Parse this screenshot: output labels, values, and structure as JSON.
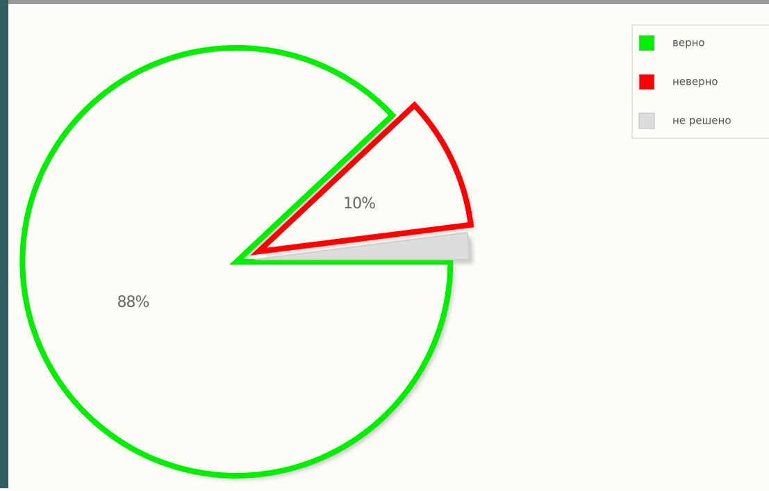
{
  "chart_data": {
    "type": "pie",
    "categories": [
      "верно",
      "неверно",
      "не решено"
    ],
    "values": [
      88,
      10,
      2
    ],
    "value_labels": [
      "88%",
      "10%",
      null
    ],
    "colors": [
      "#00ee00",
      "#ff0000",
      "#dddddd"
    ],
    "legend": "top-right"
  }
}
